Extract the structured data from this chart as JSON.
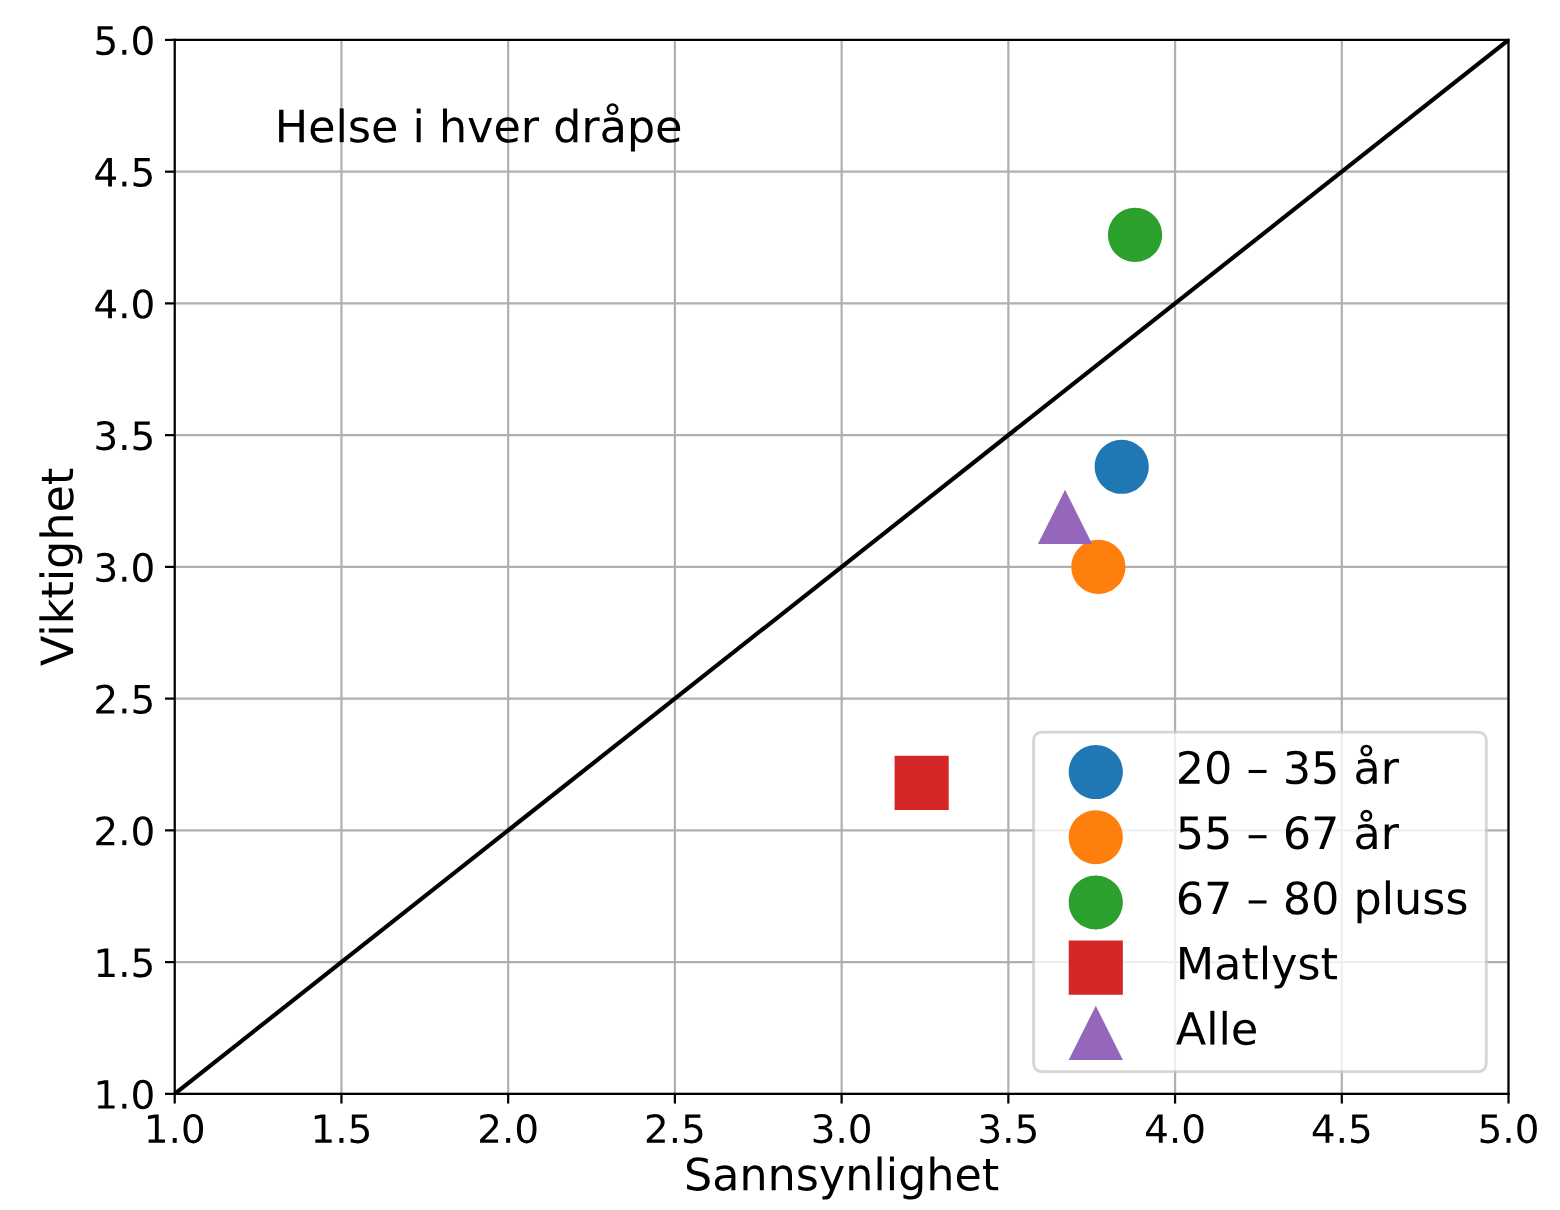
{
  "chart_data": {
    "type": "scatter",
    "xlabel": "Sannsynlighet",
    "ylabel": "Viktighet",
    "annotations": [
      "Helse i hver dråpe"
    ],
    "xlim": [
      1.0,
      5.0
    ],
    "ylim": [
      1.0,
      5.0
    ],
    "xticks": [
      {
        "value": 1.0,
        "label": "1.0"
      },
      {
        "value": 1.5,
        "label": "1.5"
      },
      {
        "value": 2.0,
        "label": "2.0"
      },
      {
        "value": 2.5,
        "label": "2.5"
      },
      {
        "value": 3.0,
        "label": "3.0"
      },
      {
        "value": 3.5,
        "label": "3.5"
      },
      {
        "value": 4.0,
        "label": "4.0"
      },
      {
        "value": 4.5,
        "label": "4.5"
      },
      {
        "value": 5.0,
        "label": "5.0"
      }
    ],
    "yticks": [
      {
        "value": 1.0,
        "label": "1.0"
      },
      {
        "value": 1.5,
        "label": "1.5"
      },
      {
        "value": 2.0,
        "label": "2.0"
      },
      {
        "value": 2.5,
        "label": "2.5"
      },
      {
        "value": 3.0,
        "label": "3.0"
      },
      {
        "value": 3.5,
        "label": "3.5"
      },
      {
        "value": 4.0,
        "label": "4.0"
      },
      {
        "value": 4.5,
        "label": "4.5"
      },
      {
        "value": 5.0,
        "label": "5.0"
      }
    ],
    "grid": true,
    "legend": "bottom right",
    "series": [
      {
        "type": "line",
        "color": "#000000",
        "x": [
          1.0,
          5.0
        ],
        "values": [
          1.0,
          5.0
        ],
        "marker": "none"
      },
      {
        "name": "20 – 35 år",
        "color": "#1f77b4",
        "marker": "circle",
        "x": [
          3.84
        ],
        "values": [
          3.38
        ]
      },
      {
        "name": "55 – 67 år",
        "color": "#ff7f0e",
        "marker": "circle",
        "x": [
          3.77
        ],
        "values": [
          3.0
        ]
      },
      {
        "name": "67 – 80 pluss",
        "color": "#2ca02c",
        "marker": "circle",
        "x": [
          3.88
        ],
        "values": [
          4.26
        ]
      },
      {
        "name": "Matlyst",
        "color": "#d62728",
        "marker": "square",
        "x": [
          3.24
        ],
        "values": [
          2.18
        ]
      },
      {
        "name": "Alle",
        "color": "#9467bd",
        "marker": "triangle",
        "x": [
          3.67
        ],
        "values": [
          3.19
        ]
      }
    ]
  }
}
